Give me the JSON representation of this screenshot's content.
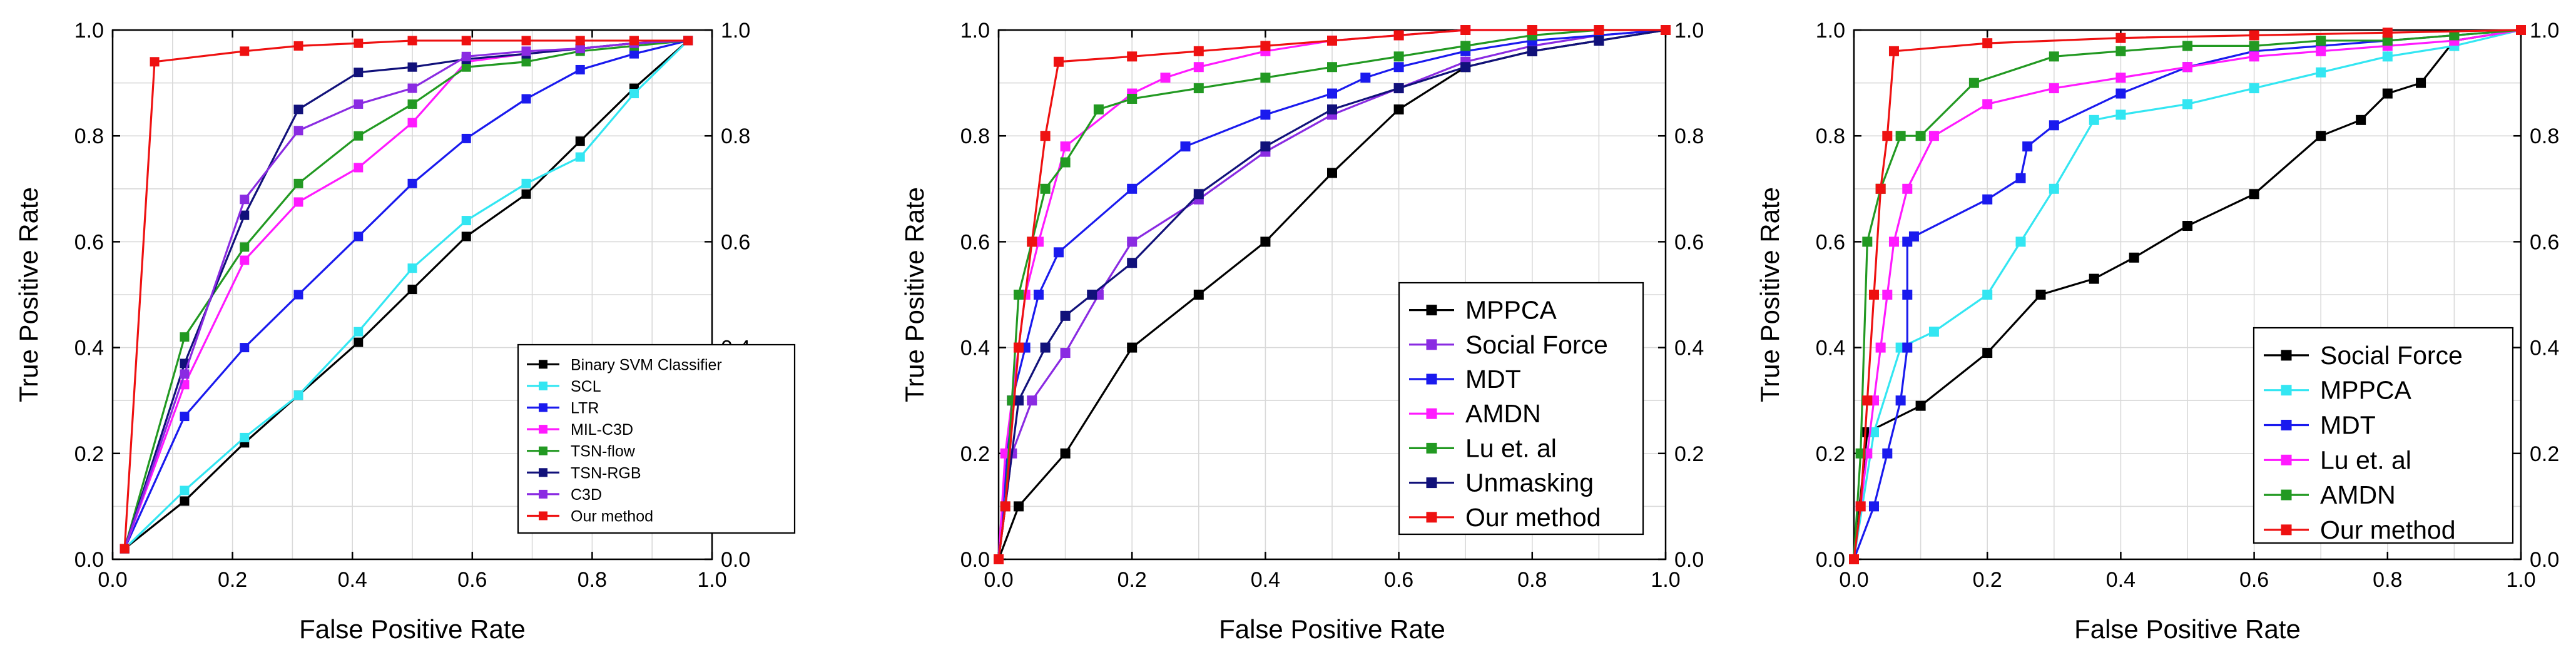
{
  "chart_data": [
    {
      "type": "line",
      "title": "",
      "xlabel": "False Positive Rate",
      "ylabel": "True Positive Rate",
      "xlim": [
        0,
        1.0
      ],
      "ylim": [
        0,
        1.0
      ],
      "xticks": [
        "0.0",
        "0.2",
        "0.4",
        "0.6",
        "0.8",
        "1.0"
      ],
      "yticks": [
        "0.0",
        "0.2",
        "0.4",
        "0.6",
        "0.8",
        "1.0"
      ],
      "right_yticks": [
        "0.0",
        "0.2",
        "0.4",
        "0.6",
        "0.8",
        "1.0"
      ],
      "grid": true,
      "legend_position": "bottom-right",
      "series": [
        {
          "name": "Binary SVM Classifier",
          "color": "#000000",
          "x": [
            0.02,
            0.12,
            0.22,
            0.31,
            0.41,
            0.5,
            0.59,
            0.69,
            0.78,
            0.87,
            0.96
          ],
          "y": [
            0.02,
            0.11,
            0.22,
            0.31,
            0.41,
            0.51,
            0.61,
            0.69,
            0.79,
            0.89,
            0.98
          ]
        },
        {
          "name": "SCL",
          "color": "#33e6f2",
          "x": [
            0.02,
            0.12,
            0.22,
            0.31,
            0.41,
            0.5,
            0.59,
            0.69,
            0.78,
            0.87,
            0.96
          ],
          "y": [
            0.02,
            0.13,
            0.23,
            0.31,
            0.43,
            0.55,
            0.64,
            0.71,
            0.76,
            0.88,
            0.98
          ]
        },
        {
          "name": "LTR",
          "color": "#1a1aee",
          "x": [
            0.02,
            0.12,
            0.22,
            0.31,
            0.41,
            0.5,
            0.59,
            0.69,
            0.78,
            0.87,
            0.96
          ],
          "y": [
            0.02,
            0.27,
            0.4,
            0.5,
            0.61,
            0.71,
            0.795,
            0.87,
            0.925,
            0.955,
            0.98
          ]
        },
        {
          "name": "MIL-C3D",
          "color": "#ff1aff",
          "x": [
            0.02,
            0.12,
            0.22,
            0.31,
            0.41,
            0.5,
            0.59,
            0.69,
            0.78,
            0.87,
            0.96
          ],
          "y": [
            0.02,
            0.33,
            0.565,
            0.675,
            0.74,
            0.825,
            0.94,
            0.955,
            0.965,
            0.975,
            0.98
          ]
        },
        {
          "name": "TSN-flow",
          "color": "#229922",
          "x": [
            0.02,
            0.12,
            0.22,
            0.31,
            0.41,
            0.5,
            0.59,
            0.69,
            0.78,
            0.87,
            0.96
          ],
          "y": [
            0.02,
            0.42,
            0.59,
            0.71,
            0.8,
            0.86,
            0.93,
            0.94,
            0.96,
            0.97,
            0.98
          ]
        },
        {
          "name": "TSN-RGB",
          "color": "#11117a",
          "x": [
            0.02,
            0.12,
            0.22,
            0.31,
            0.41,
            0.5,
            0.59,
            0.69,
            0.78,
            0.87,
            0.96
          ],
          "y": [
            0.02,
            0.37,
            0.65,
            0.85,
            0.92,
            0.93,
            0.945,
            0.955,
            0.965,
            0.975,
            0.98
          ]
        },
        {
          "name": "C3D",
          "color": "#8a2be2",
          "x": [
            0.02,
            0.12,
            0.22,
            0.31,
            0.41,
            0.5,
            0.59,
            0.69,
            0.78,
            0.87,
            0.96
          ],
          "y": [
            0.02,
            0.35,
            0.68,
            0.81,
            0.86,
            0.89,
            0.95,
            0.96,
            0.965,
            0.975,
            0.98
          ]
        },
        {
          "name": "Our method",
          "color": "#ee1111",
          "x": [
            0.02,
            0.07,
            0.22,
            0.31,
            0.41,
            0.5,
            0.59,
            0.69,
            0.78,
            0.87,
            0.96
          ],
          "y": [
            0.02,
            0.94,
            0.96,
            0.97,
            0.975,
            0.98,
            0.98,
            0.98,
            0.98,
            0.98,
            0.98
          ]
        }
      ]
    },
    {
      "type": "line",
      "title": "",
      "xlabel": "False Positive Rate",
      "ylabel": "True Positive Rate",
      "xlim": [
        0,
        1.0
      ],
      "ylim": [
        0,
        1.0
      ],
      "xticks": [
        "0.0",
        "0.2",
        "0.4",
        "0.6",
        "0.8",
        "1.0"
      ],
      "yticks": [
        "0.0",
        "0.2",
        "0.4",
        "0.6",
        "0.8",
        "1.0"
      ],
      "right_yticks": [
        "0.0",
        "0.2",
        "0.4",
        "0.6",
        "0.8",
        "1.0"
      ],
      "grid": true,
      "legend_position": "bottom-right",
      "series": [
        {
          "name": "MPPCA",
          "color": "#000000",
          "x": [
            0,
            0.03,
            0.1,
            0.2,
            0.3,
            0.4,
            0.5,
            0.6,
            0.7,
            0.8,
            0.9,
            1.0
          ],
          "y": [
            0,
            0.1,
            0.2,
            0.4,
            0.5,
            0.6,
            0.73,
            0.85,
            0.93,
            0.96,
            0.98,
            1.0
          ]
        },
        {
          "name": "Social Force",
          "color": "#8a2be2",
          "x": [
            0,
            0.02,
            0.05,
            0.1,
            0.15,
            0.2,
            0.3,
            0.4,
            0.5,
            0.6,
            0.7,
            0.8,
            0.9,
            1.0
          ],
          "y": [
            0,
            0.2,
            0.3,
            0.39,
            0.5,
            0.6,
            0.68,
            0.77,
            0.84,
            0.89,
            0.94,
            0.97,
            0.99,
            1.0
          ]
        },
        {
          "name": "MDT",
          "color": "#1a1aee",
          "x": [
            0,
            0.02,
            0.04,
            0.06,
            0.09,
            0.2,
            0.28,
            0.4,
            0.5,
            0.55,
            0.6,
            0.7,
            0.8,
            0.9,
            1.0
          ],
          "y": [
            0,
            0.3,
            0.4,
            0.5,
            0.58,
            0.7,
            0.78,
            0.84,
            0.88,
            0.91,
            0.93,
            0.96,
            0.98,
            0.99,
            1.0
          ]
        },
        {
          "name": "AMDN",
          "color": "#ff1aff",
          "x": [
            0,
            0.01,
            0.02,
            0.03,
            0.04,
            0.06,
            0.1,
            0.2,
            0.25,
            0.3,
            0.4,
            0.5,
            0.6,
            0.7,
            0.8,
            0.9,
            1.0
          ],
          "y": [
            0,
            0.2,
            0.3,
            0.4,
            0.5,
            0.6,
            0.78,
            0.88,
            0.91,
            0.93,
            0.96,
            0.98,
            0.99,
            1.0,
            1.0,
            1.0,
            1.0
          ]
        },
        {
          "name": "Lu et. al",
          "color": "#229922",
          "x": [
            0,
            0.01,
            0.02,
            0.03,
            0.05,
            0.07,
            0.1,
            0.15,
            0.2,
            0.3,
            0.4,
            0.5,
            0.6,
            0.7,
            0.8,
            0.9,
            1.0
          ],
          "y": [
            0,
            0.1,
            0.3,
            0.5,
            0.6,
            0.7,
            0.75,
            0.85,
            0.87,
            0.89,
            0.91,
            0.93,
            0.95,
            0.97,
            0.99,
            1.0,
            1.0
          ]
        },
        {
          "name": "Unmasking",
          "color": "#11117a",
          "x": [
            0,
            0.03,
            0.07,
            0.1,
            0.14,
            0.2,
            0.3,
            0.4,
            0.5,
            0.6,
            0.7,
            0.8,
            0.9,
            1.0
          ],
          "y": [
            0,
            0.3,
            0.4,
            0.46,
            0.5,
            0.56,
            0.69,
            0.78,
            0.85,
            0.89,
            0.93,
            0.96,
            0.98,
            1.0
          ]
        },
        {
          "name": "Our method",
          "color": "#ee1111",
          "x": [
            0,
            0.01,
            0.03,
            0.05,
            0.07,
            0.09,
            0.2,
            0.3,
            0.4,
            0.5,
            0.6,
            0.7,
            0.8,
            0.9,
            1.0
          ],
          "y": [
            0,
            0.1,
            0.4,
            0.6,
            0.8,
            0.94,
            0.95,
            0.96,
            0.97,
            0.98,
            0.99,
            1.0,
            1.0,
            1.0,
            1.0
          ]
        }
      ]
    },
    {
      "type": "line",
      "title": "",
      "xlabel": "False Positive Rate",
      "ylabel": "True Positive Rate",
      "xlim": [
        0,
        1.0
      ],
      "ylim": [
        0,
        1.0
      ],
      "xticks": [
        "0.0",
        "0.2",
        "0.4",
        "0.6",
        "0.8",
        "1.0"
      ],
      "yticks": [
        "0.0",
        "0.2",
        "0.4",
        "0.6",
        "0.8",
        "1.0"
      ],
      "right_yticks": [
        "0.0",
        "0.2",
        "0.4",
        "0.6",
        "0.8",
        "1.0"
      ],
      "grid": true,
      "legend_position": "bottom-right",
      "series": [
        {
          "name": "Social Force",
          "color": "#000000",
          "x": [
            0,
            0.02,
            0.1,
            0.2,
            0.28,
            0.36,
            0.42,
            0.5,
            0.6,
            0.7,
            0.76,
            0.8,
            0.85,
            0.9,
            1.0
          ],
          "y": [
            0,
            0.24,
            0.29,
            0.39,
            0.5,
            0.53,
            0.57,
            0.63,
            0.69,
            0.8,
            0.83,
            0.88,
            0.9,
            0.98,
            1.0
          ]
        },
        {
          "name": "MPPCA",
          "color": "#33e6f2",
          "x": [
            0,
            0.03,
            0.07,
            0.12,
            0.2,
            0.25,
            0.3,
            0.36,
            0.4,
            0.5,
            0.6,
            0.7,
            0.8,
            0.9,
            1.0
          ],
          "y": [
            0,
            0.24,
            0.4,
            0.43,
            0.5,
            0.6,
            0.7,
            0.83,
            0.84,
            0.86,
            0.89,
            0.92,
            0.95,
            0.97,
            1.0
          ]
        },
        {
          "name": "MDT",
          "color": "#1a1aee",
          "x": [
            0,
            0.03,
            0.05,
            0.07,
            0.08,
            0.08,
            0.08,
            0.09,
            0.2,
            0.25,
            0.26,
            0.3,
            0.4,
            0.5,
            0.6,
            0.7,
            0.8,
            0.9,
            1.0
          ],
          "y": [
            0,
            0.1,
            0.2,
            0.3,
            0.4,
            0.5,
            0.6,
            0.61,
            0.68,
            0.72,
            0.78,
            0.82,
            0.88,
            0.93,
            0.96,
            0.97,
            0.98,
            0.99,
            1.0
          ]
        },
        {
          "name": "Lu et. al",
          "color": "#ff1aff",
          "x": [
            0,
            0.01,
            0.02,
            0.03,
            0.04,
            0.05,
            0.06,
            0.08,
            0.12,
            0.2,
            0.3,
            0.4,
            0.5,
            0.6,
            0.7,
            0.8,
            0.9,
            1.0
          ],
          "y": [
            0,
            0.1,
            0.2,
            0.3,
            0.4,
            0.5,
            0.6,
            0.7,
            0.8,
            0.86,
            0.89,
            0.91,
            0.93,
            0.95,
            0.96,
            0.97,
            0.98,
            1.0
          ]
        },
        {
          "name": "AMDN",
          "color": "#229922",
          "x": [
            0,
            0.01,
            0.02,
            0.04,
            0.07,
            0.1,
            0.18,
            0.3,
            0.4,
            0.5,
            0.6,
            0.7,
            0.8,
            0.9,
            1.0
          ],
          "y": [
            0,
            0.2,
            0.6,
            0.7,
            0.8,
            0.8,
            0.9,
            0.95,
            0.96,
            0.97,
            0.97,
            0.98,
            0.98,
            0.99,
            1.0
          ]
        },
        {
          "name": "Our method",
          "color": "#ee1111",
          "x": [
            0,
            0.01,
            0.02,
            0.03,
            0.04,
            0.05,
            0.06,
            0.2,
            0.4,
            0.6,
            0.8,
            1.0
          ],
          "y": [
            0,
            0.1,
            0.3,
            0.5,
            0.7,
            0.8,
            0.96,
            0.975,
            0.985,
            0.99,
            0.995,
            1.0
          ]
        }
      ]
    }
  ]
}
